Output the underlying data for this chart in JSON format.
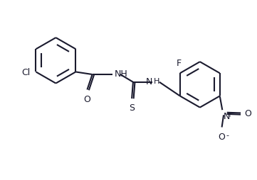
{
  "bg_color": "#ffffff",
  "bond_color": "#1a1a2e",
  "bond_width": 1.5,
  "font_size": 9,
  "atom_color": "#1a1a2e",
  "figsize": [
    3.61,
    2.55
  ],
  "dpi": 100,
  "xlim": [
    0,
    10
  ],
  "ylim": [
    0,
    7
  ]
}
